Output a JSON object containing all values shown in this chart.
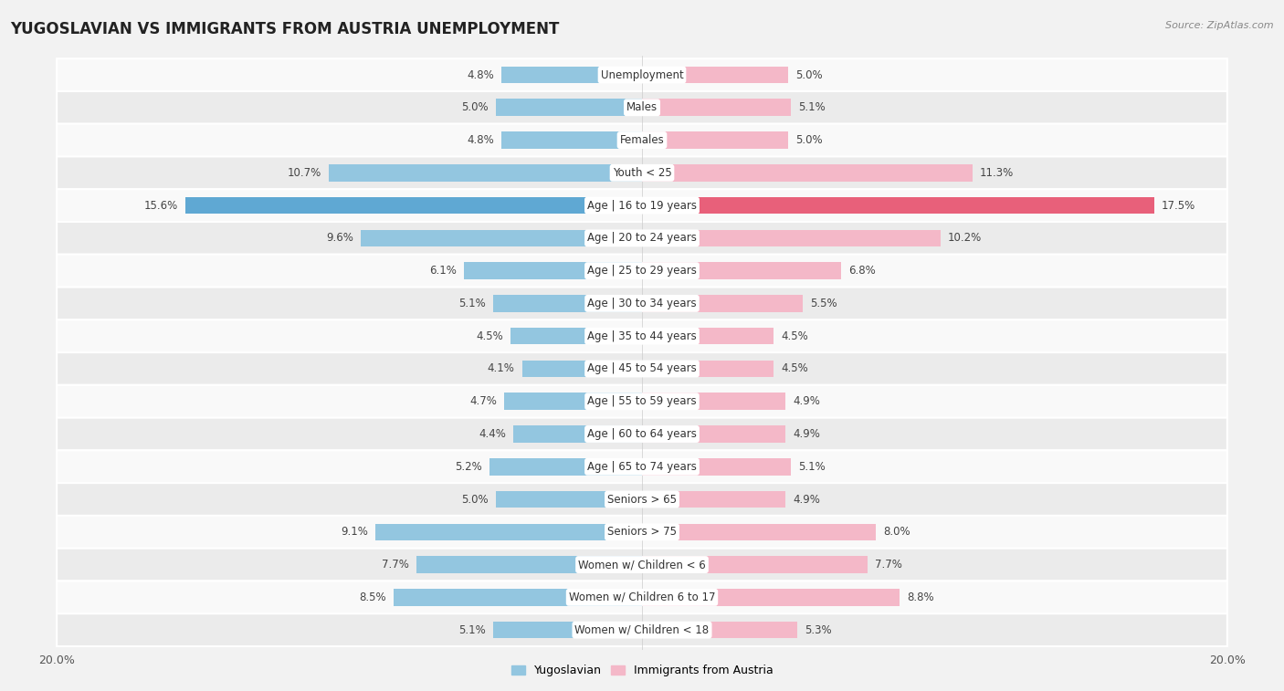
{
  "title": "YUGOSLAVIAN VS IMMIGRANTS FROM AUSTRIA UNEMPLOYMENT",
  "source": "Source: ZipAtlas.com",
  "categories": [
    "Unemployment",
    "Males",
    "Females",
    "Youth < 25",
    "Age | 16 to 19 years",
    "Age | 20 to 24 years",
    "Age | 25 to 29 years",
    "Age | 30 to 34 years",
    "Age | 35 to 44 years",
    "Age | 45 to 54 years",
    "Age | 55 to 59 years",
    "Age | 60 to 64 years",
    "Age | 65 to 74 years",
    "Seniors > 65",
    "Seniors > 75",
    "Women w/ Children < 6",
    "Women w/ Children 6 to 17",
    "Women w/ Children < 18"
  ],
  "yugoslavian": [
    4.8,
    5.0,
    4.8,
    10.7,
    15.6,
    9.6,
    6.1,
    5.1,
    4.5,
    4.1,
    4.7,
    4.4,
    5.2,
    5.0,
    9.1,
    7.7,
    8.5,
    5.1
  ],
  "austria": [
    5.0,
    5.1,
    5.0,
    11.3,
    17.5,
    10.2,
    6.8,
    5.5,
    4.5,
    4.5,
    4.9,
    4.9,
    5.1,
    4.9,
    8.0,
    7.7,
    8.8,
    5.3
  ],
  "yugoslav_color_normal": "#93c6e0",
  "yugoslav_color_highlight": "#5fa8d3",
  "austria_color_normal": "#f4b8c8",
  "austria_color_highlight": "#e8607a",
  "background_color": "#f2f2f2",
  "row_bg_even": "#f9f9f9",
  "row_bg_odd": "#ebebeb",
  "max_value": 20.0,
  "bar_height": 0.52,
  "legend_yugoslav": "Yugoslavian",
  "legend_austria": "Immigrants from Austria",
  "highlight_indices": [
    4
  ]
}
